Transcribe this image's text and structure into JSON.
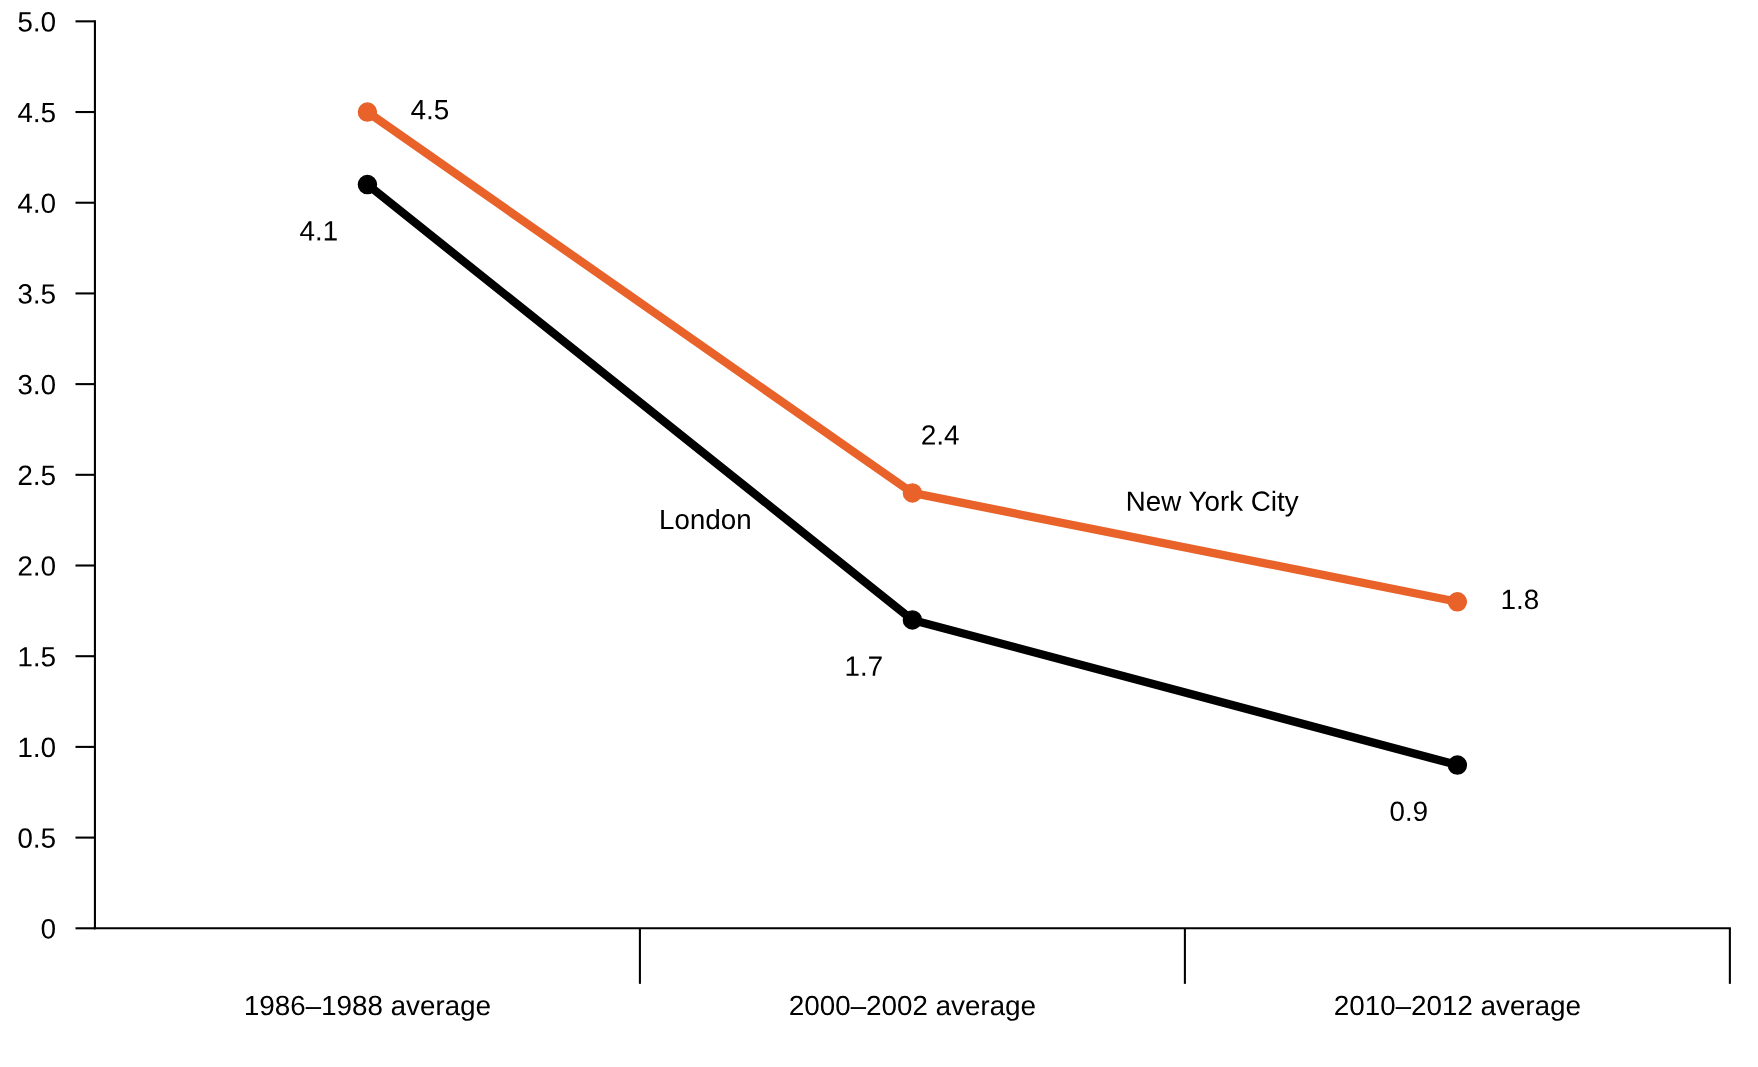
{
  "chart_data": {
    "type": "line",
    "categories": [
      "1986–1988 average",
      "2000–2002 average",
      "2010–2012 average"
    ],
    "series": [
      {
        "name": "New York City",
        "color": "#e8622a",
        "values": [
          4.5,
          2.4,
          1.8
        ]
      },
      {
        "name": "London",
        "color": "#000000",
        "values": [
          4.1,
          1.7,
          0.9
        ]
      }
    ],
    "ylim": [
      0,
      5
    ],
    "yticks": [
      0,
      {
        "value": 0.5,
        "label": "0.5"
      },
      {
        "value": 1,
        "label": "1.0"
      },
      {
        "value": 1.5,
        "label": "1.5"
      },
      {
        "value": 2,
        "label": "2.0"
      },
      {
        "value": 2.5,
        "label": "2.5"
      },
      {
        "value": 3,
        "label": "3.0"
      },
      {
        "value": 3.5,
        "label": "3.5"
      },
      {
        "value": 4,
        "label": "4.0"
      },
      {
        "value": 4.5,
        "label": "4.5"
      },
      {
        "value": 5,
        "label": "5.0"
      }
    ],
    "data_labels": true,
    "marker": "circle",
    "line_style": "solid",
    "grid": false,
    "legend": false
  }
}
